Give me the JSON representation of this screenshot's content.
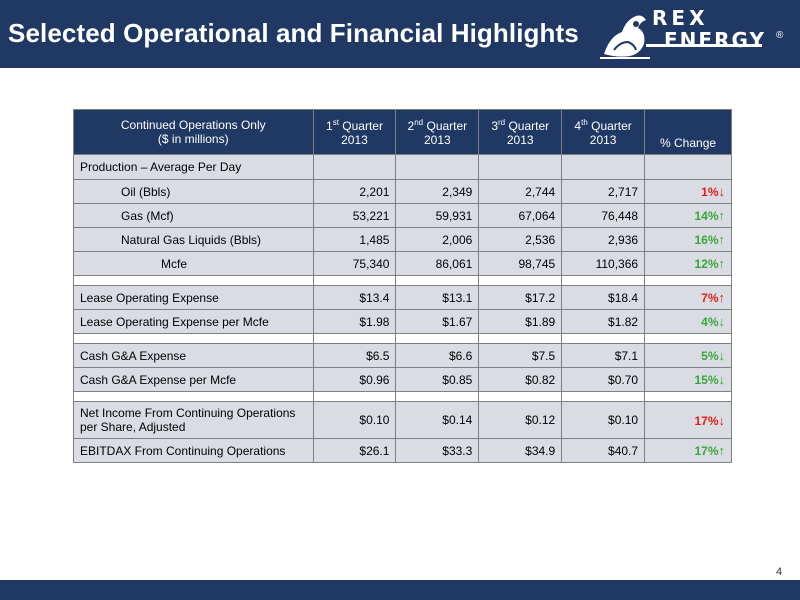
{
  "header": {
    "title": "Selected Operational and Financial Highlights"
  },
  "logo": {
    "line1": "REX",
    "line2": "ENERGY",
    "reg": "®"
  },
  "table": {
    "header": {
      "label_line1": "Continued Operations Only",
      "label_line2": "($ in millions)",
      "quarters": [
        {
          "num": "1",
          "sup": "st",
          "word": "Quarter",
          "year": "2013"
        },
        {
          "num": "2",
          "sup": "nd",
          "word": "Quarter",
          "year": "2013"
        },
        {
          "num": "3",
          "sup": "rd",
          "word": "Quarter",
          "year": "2013"
        },
        {
          "num": "4",
          "sup": "th",
          "word": "Quarter",
          "year": "2013"
        }
      ],
      "change": "% Change"
    },
    "section_production": "Production – Average Per Day",
    "rows": [
      {
        "label": "Oil (Bbls)",
        "q1": "2,201",
        "q2": "2,349",
        "q3": "2,744",
        "q4": "2,717",
        "pct": "1%",
        "dir": "down",
        "arrow": "↓"
      },
      {
        "label": "Gas (Mcf)",
        "q1": "53,221",
        "q2": "59,931",
        "q3": "67,064",
        "q4": "76,448",
        "pct": "14%",
        "dir": "up",
        "arrow": "↑"
      },
      {
        "label": "Natural Gas Liquids (Bbls)",
        "q1": "1,485",
        "q2": "2,006",
        "q3": "2,536",
        "q4": "2,936",
        "pct": "16%",
        "dir": "up",
        "arrow": "↑"
      },
      {
        "label": "Mcfe",
        "q1": "75,340",
        "q2": "86,061",
        "q3": "98,745",
        "q4": "110,366",
        "pct": "12%",
        "dir": "up",
        "arrow": "↑"
      },
      {
        "label": "Lease Operating Expense",
        "q1": "$13.4",
        "q2": "$13.1",
        "q3": "$17.2",
        "q4": "$18.4",
        "pct": "7%",
        "dir": "down",
        "arrow": "↑"
      },
      {
        "label": "Lease Operating Expense per Mcfe",
        "q1": "$1.98",
        "q2": "$1.67",
        "q3": "$1.89",
        "q4": "$1.82",
        "pct": "4%",
        "dir": "up",
        "arrow": "↓"
      },
      {
        "label": "Cash G&A Expense",
        "q1": "$6.5",
        "q2": "$6.6",
        "q3": "$7.5",
        "q4": "$7.1",
        "pct": "5%",
        "dir": "up",
        "arrow": "↓"
      },
      {
        "label": "Cash G&A Expense per Mcfe",
        "q1": "$0.96",
        "q2": "$0.85",
        "q3": "$0.82",
        "q4": "$0.70",
        "pct": "15%",
        "dir": "up",
        "arrow": "↓"
      },
      {
        "label_line1": "Net Income From Continuing Operations",
        "label_line2": "per Share, Adjusted",
        "q1": "$0.10",
        "q2": "$0.14",
        "q3": "$0.12",
        "q4": "$0.10",
        "pct": "17%",
        "dir": "down",
        "arrow": "↓"
      },
      {
        "label": "EBITDAX From Continuing Operations",
        "q1": "$26.1",
        "q2": "$33.3",
        "q3": "$34.9",
        "q4": "$40.7",
        "pct": "17%",
        "dir": "up",
        "arrow": "↑"
      }
    ]
  },
  "colors": {
    "navy": "#1f3864",
    "row_fill": "#d9dde3",
    "up_green": "#3aa63a",
    "down_red": "#e0201a"
  },
  "footer": {
    "page_number": "4"
  }
}
